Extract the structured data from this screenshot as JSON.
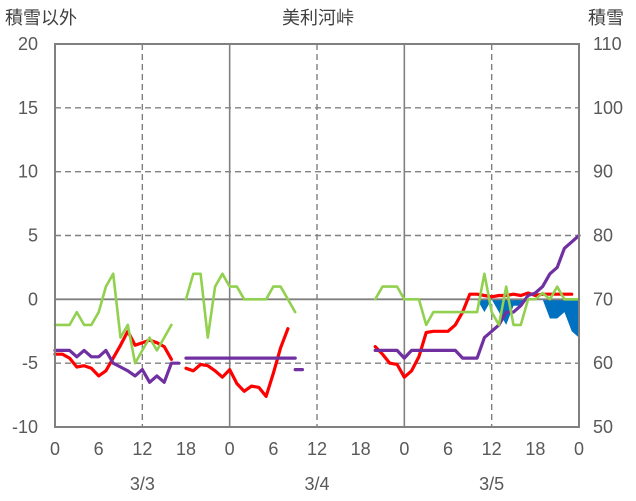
{
  "chart_data": {
    "type": "line",
    "title": "美利河峠",
    "y_left_label": "積雪以外",
    "y_right_label": "積雪",
    "y_left_ticks": [
      "20",
      "15",
      "10",
      "5",
      "0",
      "-5",
      "-10"
    ],
    "y_right_ticks": [
      "110",
      "100",
      "90",
      "80",
      "70",
      "60",
      "50"
    ],
    "ylim_left": [
      -10,
      20
    ],
    "ylim_right": [
      50,
      110
    ],
    "x_tick_labels": [
      "0",
      "6",
      "12",
      "18",
      "0",
      "6",
      "12",
      "18",
      "0",
      "6",
      "12",
      "18",
      "0"
    ],
    "x_range_hours": [
      0,
      72
    ],
    "date_labels": [
      "3/3",
      "3/4",
      "3/5"
    ],
    "grid": "dashed vertical every 12h, solid vertical at 0h, horizontal line at 0",
    "series": [
      {
        "color": "#ff0000",
        "axis": "left",
        "segments": [
          [
            [
              0,
              -4.3
            ],
            [
              1,
              -4.3
            ],
            [
              2,
              -4.6
            ],
            [
              3,
              -5.3
            ],
            [
              4,
              -5.2
            ],
            [
              5,
              -5.4
            ],
            [
              6,
              -6.0
            ],
            [
              7,
              -5.6
            ],
            [
              8,
              -4.6
            ],
            [
              9,
              -3.6
            ],
            [
              10,
              -2.5
            ],
            [
              11,
              -3.6
            ],
            [
              12,
              -3.4
            ],
            [
              13,
              -3.2
            ],
            [
              14,
              -3.4
            ],
            [
              15,
              -3.7
            ],
            [
              16,
              -4.7
            ]
          ],
          [
            [
              18,
              -5.4
            ],
            [
              19,
              -5.6
            ],
            [
              20,
              -5.1
            ],
            [
              21,
              -5.2
            ],
            [
              22,
              -5.6
            ],
            [
              23,
              -6.1
            ],
            [
              24,
              -5.5
            ],
            [
              25,
              -6.6
            ],
            [
              26,
              -7.2
            ],
            [
              27,
              -6.8
            ],
            [
              28,
              -6.9
            ],
            [
              29,
              -7.6
            ],
            [
              30,
              -5.8
            ],
            [
              31,
              -3.8
            ],
            [
              32,
              -2.3
            ]
          ],
          [
            [
              44,
              -3.7
            ],
            [
              45,
              -4.3
            ],
            [
              46,
              -5.0
            ],
            [
              47,
              -5.1
            ],
            [
              48,
              -6.1
            ],
            [
              49,
              -5.6
            ],
            [
              50,
              -4.5
            ],
            [
              51,
              -2.6
            ],
            [
              52,
              -2.5
            ],
            [
              53,
              -2.5
            ],
            [
              54,
              -2.5
            ],
            [
              55,
              -2.0
            ],
            [
              56,
              -1.0
            ],
            [
              57,
              0.4
            ],
            [
              58,
              0.4
            ],
            [
              59,
              0.3
            ],
            [
              60,
              0.2
            ],
            [
              61,
              0.3
            ],
            [
              62,
              0.3
            ],
            [
              63,
              0.4
            ],
            [
              64,
              0.3
            ],
            [
              65,
              0.5
            ],
            [
              66,
              0.3
            ],
            [
              67,
              0.4
            ],
            [
              68,
              0.4
            ],
            [
              69,
              0.4
            ],
            [
              70,
              0.4
            ],
            [
              71,
              0.4
            ]
          ]
        ]
      },
      {
        "color": "#7030a0",
        "axis": "left",
        "segments": [
          [
            [
              0,
              -4.0
            ],
            [
              1,
              -4.0
            ],
            [
              2,
              -4.0
            ],
            [
              3,
              -4.5
            ],
            [
              4,
              -4.0
            ],
            [
              5,
              -4.5
            ],
            [
              6,
              -4.5
            ],
            [
              7,
              -4.0
            ],
            [
              8,
              -5.0
            ],
            [
              9,
              -5.3
            ],
            [
              10,
              -5.6
            ],
            [
              11,
              -6.0
            ],
            [
              12,
              -5.5
            ],
            [
              13,
              -6.5
            ],
            [
              14,
              -6.0
            ],
            [
              15,
              -6.5
            ],
            [
              16,
              -5.0
            ],
            [
              17,
              -5.0
            ]
          ],
          [
            [
              18,
              -4.6
            ],
            [
              33,
              -4.6
            ]
          ],
          [
            [
              33,
              -5.5
            ],
            [
              34,
              -5.5
            ]
          ],
          [
            [
              44,
              -4.0
            ],
            [
              47,
              -4.0
            ],
            [
              48,
              -4.6
            ],
            [
              49,
              -4.0
            ],
            [
              55,
              -4.0
            ],
            [
              56,
              -4.6
            ],
            [
              58,
              -4.6
            ],
            [
              59,
              -3.0
            ],
            [
              60,
              -2.5
            ],
            [
              61,
              -2.0
            ],
            [
              62,
              -1.0
            ],
            [
              63,
              -1.0
            ],
            [
              64,
              -0.5
            ],
            [
              65,
              0.3
            ],
            [
              66,
              0.5
            ],
            [
              67,
              1.0
            ],
            [
              68,
              2.0
            ],
            [
              69,
              2.5
            ],
            [
              70,
              4.0
            ],
            [
              71,
              4.5
            ],
            [
              72,
              5.0
            ]
          ]
        ]
      },
      {
        "color": "#92d050",
        "axis": "left",
        "segments": [
          [
            [
              0,
              -2
            ],
            [
              1,
              -2
            ],
            [
              2,
              -2
            ],
            [
              3,
              -1
            ],
            [
              4,
              -2
            ],
            [
              5,
              -2
            ],
            [
              6,
              -1
            ],
            [
              7,
              1
            ],
            [
              8,
              2
            ],
            [
              9,
              -3
            ],
            [
              10,
              -2
            ],
            [
              11,
              -5
            ],
            [
              12,
              -4
            ],
            [
              13,
              -3
            ],
            [
              14,
              -4
            ],
            [
              15,
              -3
            ],
            [
              16,
              -2
            ]
          ],
          [
            [
              18,
              0
            ],
            [
              19,
              2
            ],
            [
              20,
              2
            ],
            [
              21,
              -3
            ],
            [
              22,
              1
            ],
            [
              23,
              2
            ],
            [
              24,
              1
            ],
            [
              25,
              1
            ],
            [
              26,
              0
            ],
            [
              27,
              0
            ],
            [
              28,
              0
            ],
            [
              29,
              0
            ],
            [
              30,
              1
            ],
            [
              31,
              1
            ],
            [
              32,
              0
            ],
            [
              33,
              -1
            ]
          ],
          [
            [
              44,
              0
            ],
            [
              45,
              1
            ],
            [
              46,
              1
            ],
            [
              47,
              1
            ],
            [
              48,
              0
            ],
            [
              49,
              0
            ],
            [
              50,
              0
            ],
            [
              51,
              -2
            ],
            [
              52,
              -1
            ],
            [
              53,
              -1
            ],
            [
              54,
              -1
            ],
            [
              55,
              -1
            ],
            [
              56,
              -1
            ],
            [
              57,
              -1
            ],
            [
              58,
              -1
            ],
            [
              59,
              2
            ],
            [
              60,
              -1
            ],
            [
              61,
              -2
            ],
            [
              62,
              1
            ],
            [
              63,
              -2
            ],
            [
              64,
              -2
            ],
            [
              65,
              0
            ],
            [
              66,
              0
            ],
            [
              67,
              0.5
            ],
            [
              68,
              0
            ],
            [
              69,
              1
            ],
            [
              70,
              0
            ],
            [
              71,
              0
            ],
            [
              72,
              0
            ]
          ]
        ]
      },
      {
        "color": "#0070c0",
        "axis": "right",
        "type": "area",
        "points": [
          [
            58,
            70
          ],
          [
            59,
            68
          ],
          [
            60,
            70
          ],
          [
            61,
            68
          ],
          [
            62,
            66
          ],
          [
            63,
            69
          ],
          [
            64,
            69
          ],
          [
            65,
            70
          ],
          [
            66,
            70
          ],
          [
            67,
            70
          ],
          [
            68,
            67
          ],
          [
            69,
            67
          ],
          [
            70,
            68
          ],
          [
            71,
            65
          ],
          [
            72,
            64
          ]
        ]
      }
    ]
  }
}
